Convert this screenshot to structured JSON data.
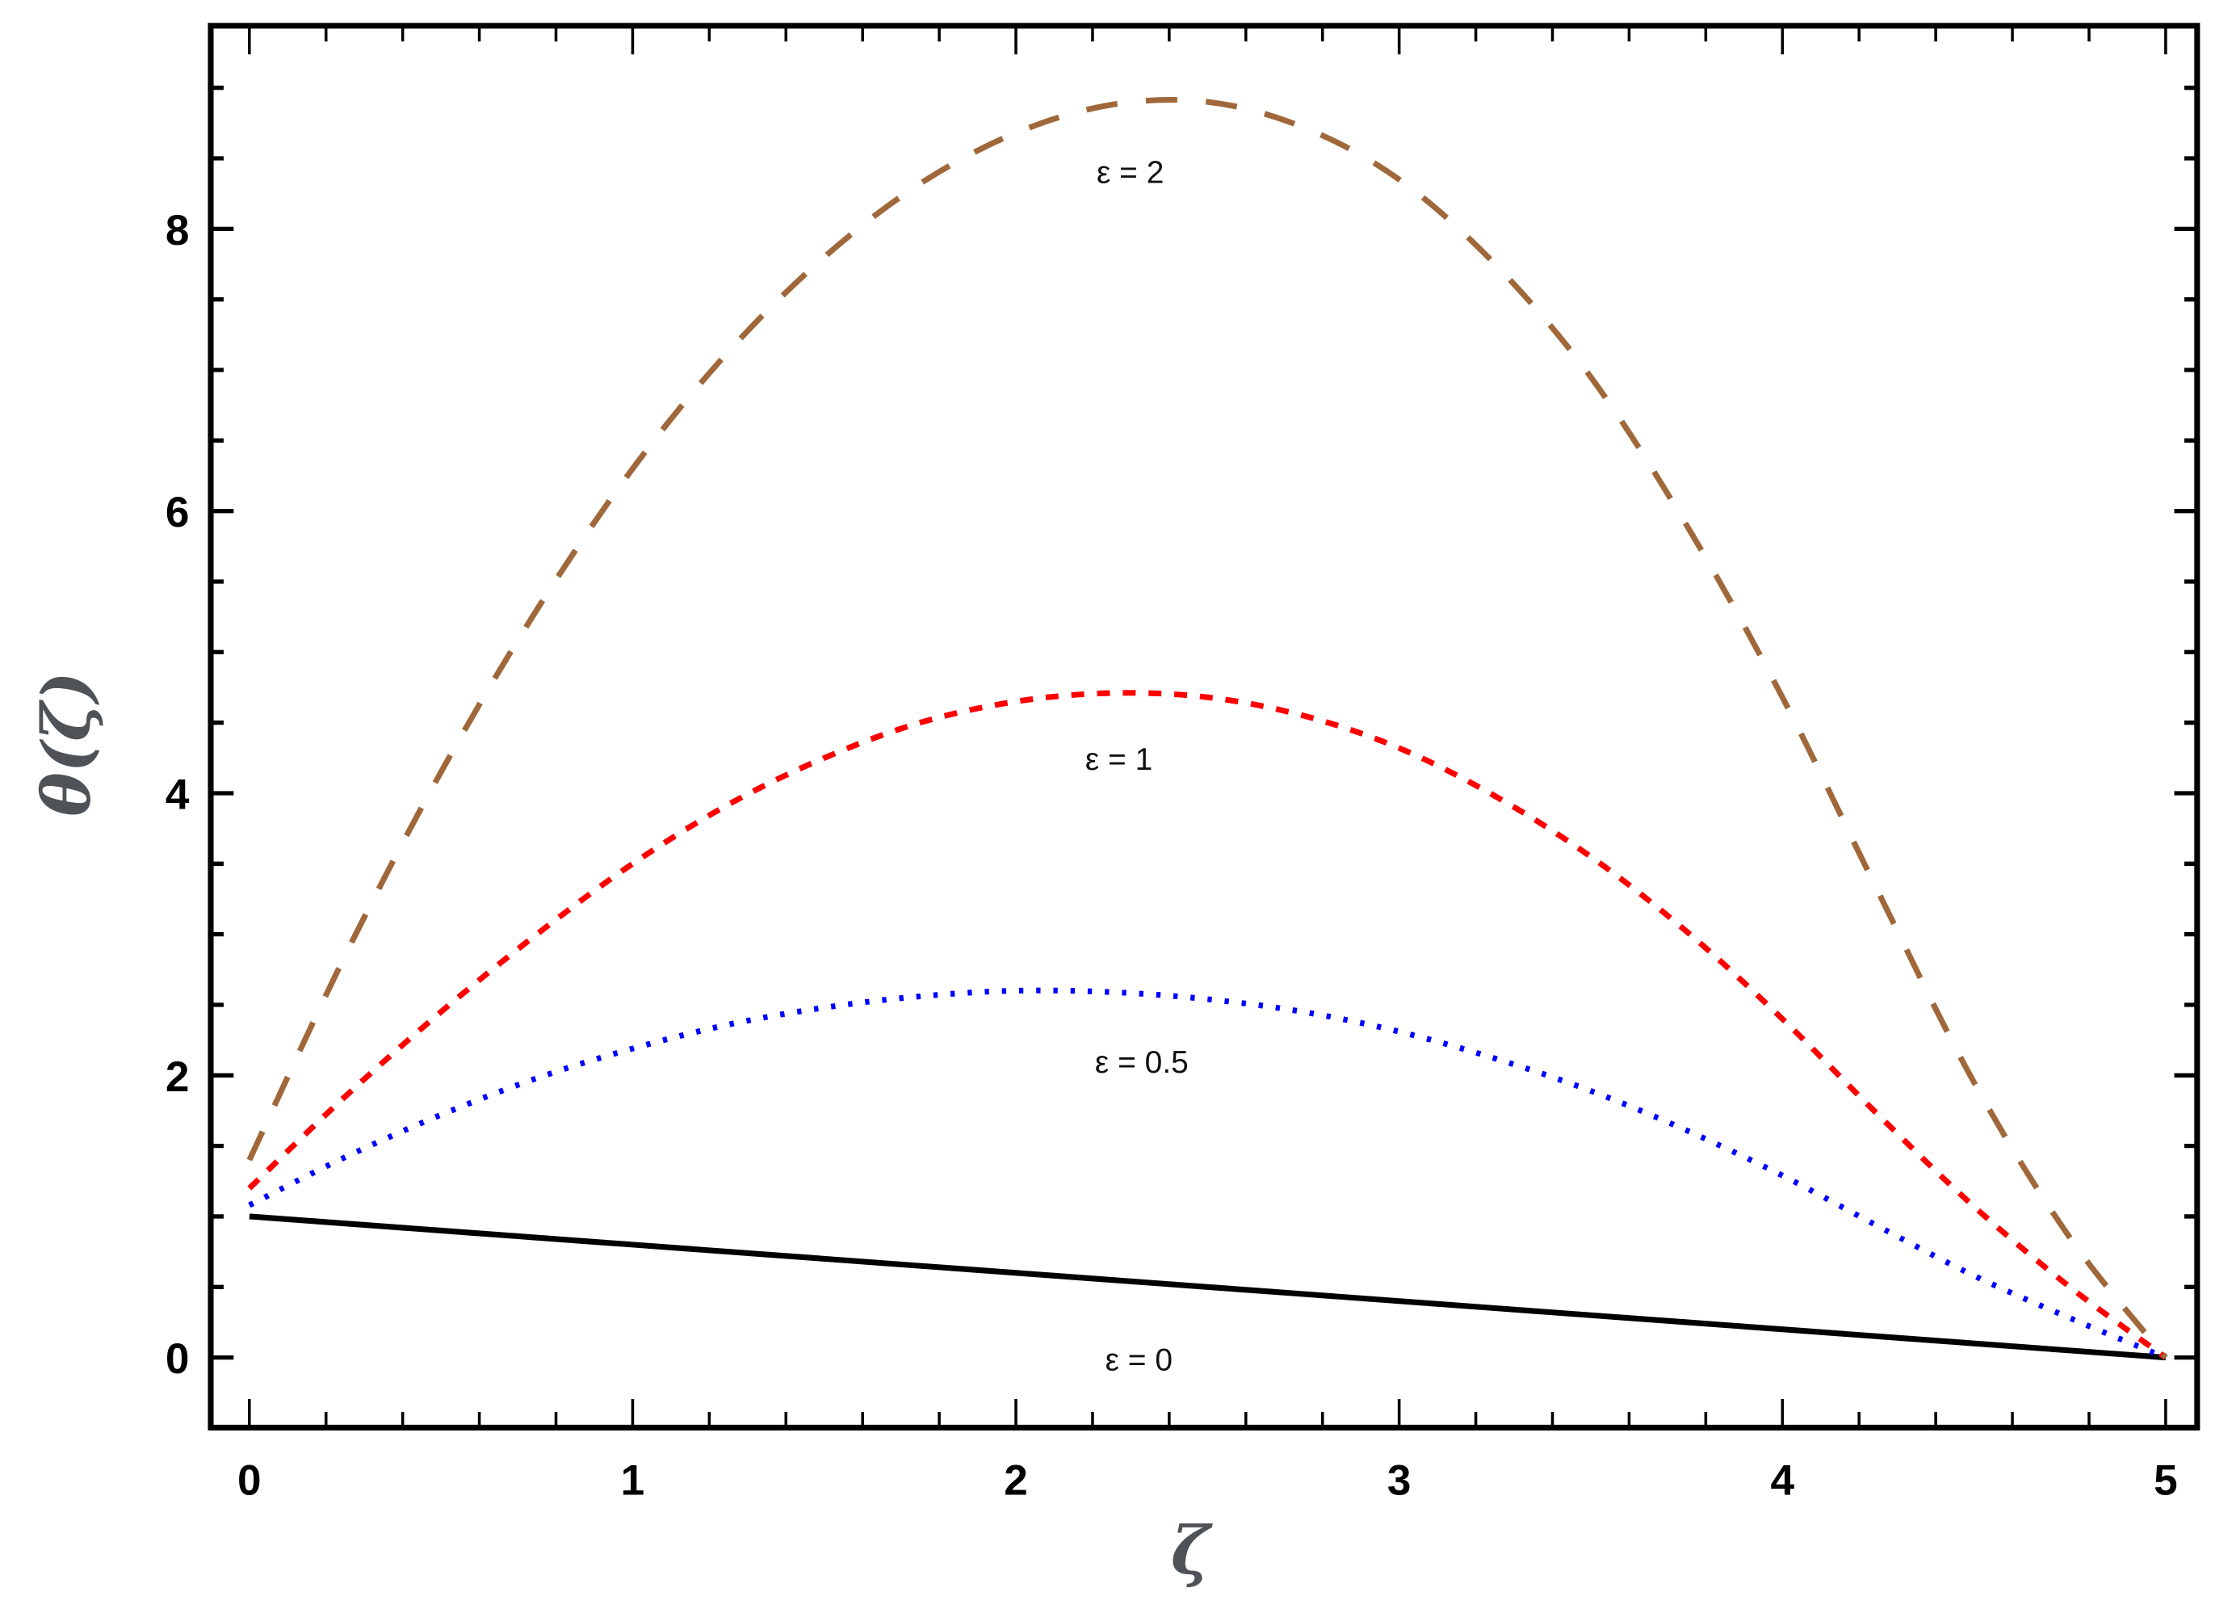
{
  "chart_data": {
    "type": "line",
    "title": "",
    "xlabel": "ζ",
    "ylabel": "θ(ζ)",
    "xlim": [
      -0.1,
      5.08
    ],
    "ylim": [
      -0.5,
      9.6
    ],
    "grid": false,
    "legend_position": "inline annotations",
    "x_ticks": [
      "0",
      "1",
      "2",
      "3",
      "4",
      "5"
    ],
    "y_ticks": [
      "0",
      "2",
      "4",
      "6",
      "8"
    ],
    "x": [
      0,
      0.25,
      0.5,
      0.75,
      1.0,
      1.25,
      1.5,
      1.75,
      2.0,
      2.25,
      2.5,
      2.75,
      3.0,
      3.25,
      3.5,
      3.75,
      4.0,
      4.25,
      4.5,
      4.75,
      5.0
    ],
    "series": [
      {
        "name": "ε = 0",
        "color": "#000000",
        "style": "solid",
        "values": [
          1.0,
          0.95,
          0.9,
          0.85,
          0.8,
          0.75,
          0.7,
          0.65,
          0.6,
          0.55,
          0.5,
          0.45,
          0.4,
          0.35,
          0.3,
          0.25,
          0.2,
          0.15,
          0.1,
          0.05,
          0.0
        ],
        "label_pos": [
          2.35,
          0.0
        ]
      },
      {
        "name": "ε = 0.5",
        "color": "#0000ff",
        "style": "dotted",
        "values": [
          1.08,
          1.42,
          1.72,
          1.98,
          2.19,
          2.36,
          2.48,
          2.56,
          2.6,
          2.59,
          2.54,
          2.45,
          2.31,
          2.12,
          1.89,
          1.61,
          1.29,
          0.93,
          0.58,
          0.28,
          0.0
        ],
        "label_pos": [
          2.35,
          1.05
        ]
      },
      {
        "name": "ε = 1",
        "color": "#ff0000",
        "style": "dashed",
        "values": [
          1.2,
          1.85,
          2.45,
          3.0,
          3.5,
          3.92,
          4.25,
          4.5,
          4.65,
          4.71,
          4.68,
          4.55,
          4.32,
          3.98,
          3.55,
          3.02,
          2.4,
          1.72,
          1.07,
          0.5,
          0.0
        ],
        "label_pos": [
          2.35,
          2.13
        ]
      },
      {
        "name": "ε = 2",
        "color": "#a0683a",
        "style": "long-dashed",
        "values": [
          1.4,
          2.85,
          4.15,
          5.3,
          6.3,
          7.13,
          7.8,
          8.32,
          8.68,
          8.88,
          8.9,
          8.72,
          8.35,
          7.75,
          6.95,
          5.9,
          4.68,
          3.3,
          1.95,
          0.85,
          0.0
        ],
        "label_pos": [
          2.35,
          8.45
        ]
      }
    ]
  },
  "axes": {
    "x_label": "ζ",
    "y_label": "θ(ζ)"
  },
  "labels": {
    "eps0": "ε = 0",
    "eps05": "ε = 0.5",
    "eps1": "ε = 1",
    "eps2": "ε = 2"
  }
}
